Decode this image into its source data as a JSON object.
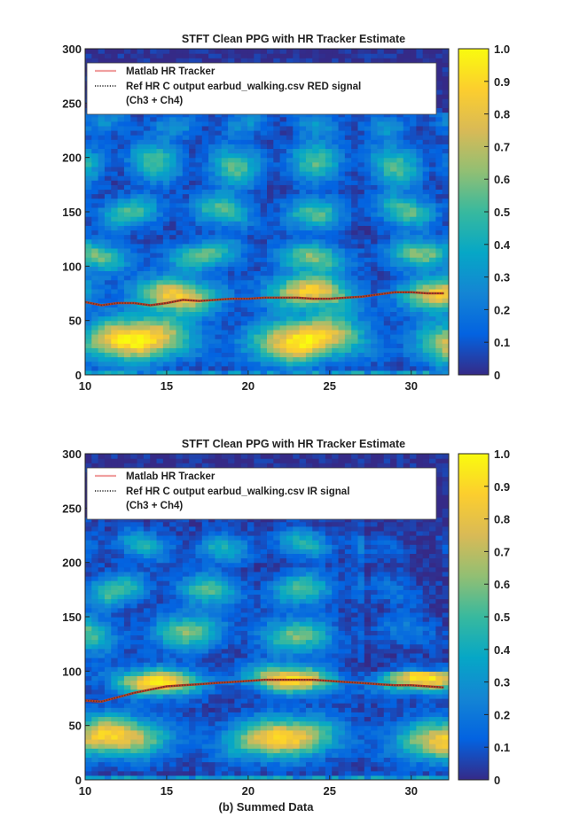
{
  "caption": "(b) Summed Data",
  "colormap": [
    "#352a87",
    "#0363e1",
    "#1485d4",
    "#06a7c6",
    "#38b99e",
    "#92bf73",
    "#d9ba56",
    "#fcce2e",
    "#f9fb0e"
  ],
  "chart_data": [
    {
      "type": "heatmap",
      "title": "STFT Clean PPG with HR Tracker Estimate",
      "xlabel": "",
      "ylabel": "",
      "xlim": [
        10,
        32.3
      ],
      "ylim": [
        0,
        300
      ],
      "x_ticks": [
        "10",
        "15",
        "20",
        "25",
        "30"
      ],
      "y_ticks": [
        "0",
        "50",
        "100",
        "150",
        "200",
        "250",
        "300"
      ],
      "colorbar": {
        "range": [
          0,
          1
        ],
        "ticks": [
          "0",
          "0.1",
          "0.2",
          "0.3",
          "0.4",
          "0.5",
          "0.6",
          "0.7",
          "0.8",
          "0.9",
          "1.0"
        ]
      },
      "legend": {
        "position": "top-left",
        "entries": [
          {
            "label": "Matlab HR Tracker",
            "color": "#f0a0a0",
            "style": "solid"
          },
          {
            "label": "Ref HR C output earbud_walking.csv RED signal",
            "label2": "(Ch3 + Ch4)",
            "color": "#555555",
            "style": "dotted"
          }
        ]
      },
      "series": [
        {
          "name": "Matlab HR Tracker",
          "x": [
            10,
            11,
            12,
            13,
            14,
            15,
            16,
            17,
            18,
            19,
            20,
            21,
            22,
            23,
            24,
            25,
            26,
            27,
            28,
            29,
            30,
            31,
            32
          ],
          "y": [
            67,
            64,
            66,
            66,
            64,
            66,
            69,
            68,
            69,
            70,
            70,
            71,
            71,
            71,
            70,
            70,
            71,
            72,
            74,
            76,
            76,
            75,
            75
          ]
        },
        {
          "name": "Ref HR C output earbud_walking.csv RED signal",
          "x": [
            10,
            11,
            12,
            13,
            14,
            15,
            16,
            17,
            18,
            19,
            20,
            21,
            22,
            23,
            24,
            25,
            26,
            27,
            28,
            29,
            30,
            31,
            32
          ],
          "y": [
            67,
            64,
            66,
            66,
            64,
            66,
            69,
            68,
            69,
            70,
            70,
            71,
            71,
            71,
            70,
            70,
            71,
            72,
            74,
            76,
            76,
            75,
            75
          ]
        }
      ],
      "intensity_bands": [
        {
          "y": 32,
          "w": 20,
          "v": 0.95
        },
        {
          "y": 75,
          "w": 15,
          "v": 0.8
        },
        {
          "y": 110,
          "w": 13,
          "v": 0.55
        },
        {
          "y": 150,
          "w": 14,
          "v": 0.5
        },
        {
          "y": 195,
          "w": 18,
          "v": 0.5
        },
        {
          "y": 232,
          "w": 12,
          "v": 0.25
        }
      ]
    },
    {
      "type": "heatmap",
      "title": "STFT Clean PPG with HR Tracker Estimate",
      "xlabel": "",
      "ylabel": "",
      "xlim": [
        10,
        32.3
      ],
      "ylim": [
        0,
        300
      ],
      "x_ticks": [
        "10",
        "15",
        "20",
        "25",
        "30"
      ],
      "y_ticks": [
        "0",
        "50",
        "100",
        "150",
        "200",
        "250",
        "300"
      ],
      "colorbar": {
        "range": [
          0,
          1
        ],
        "ticks": [
          "0",
          "0.1",
          "0.2",
          "0.3",
          "0.4",
          "0.5",
          "0.6",
          "0.7",
          "0.8",
          "0.9",
          "1.0"
        ]
      },
      "legend": {
        "position": "top-left",
        "entries": [
          {
            "label": "Matlab HR Tracker",
            "color": "#f0a0a0",
            "style": "solid"
          },
          {
            "label": "Ref HR C output earbud_walking.csv IR signal",
            "label2": "(Ch3 + Ch4)",
            "color": "#555555",
            "style": "dotted"
          }
        ]
      },
      "series": [
        {
          "name": "Matlab HR Tracker",
          "x": [
            10,
            11,
            12,
            13,
            14,
            15,
            16,
            17,
            18,
            19,
            20,
            21,
            22,
            23,
            24,
            25,
            26,
            27,
            28,
            29,
            30,
            31,
            32
          ],
          "y": [
            73,
            72,
            76,
            80,
            83,
            86,
            87,
            88,
            89,
            90,
            91,
            92,
            92,
            92,
            92,
            91,
            90,
            89,
            88,
            87,
            87,
            86,
            85
          ]
        },
        {
          "name": "Ref HR C output earbud_walking.csv IR signal",
          "x": [
            10,
            11,
            12,
            13,
            14,
            15,
            16,
            17,
            18,
            19,
            20,
            21,
            22,
            23,
            24,
            25,
            26,
            27,
            28,
            29,
            30,
            31,
            32
          ],
          "y": [
            73,
            72,
            76,
            80,
            83,
            86,
            87,
            88,
            89,
            90,
            91,
            92,
            92,
            92,
            92,
            91,
            90,
            89,
            88,
            87,
            87,
            86,
            85
          ]
        }
      ],
      "intensity_bands": [
        {
          "y": 38,
          "w": 18,
          "v": 0.85
        },
        {
          "y": 92,
          "w": 12,
          "v": 0.9
        },
        {
          "y": 135,
          "w": 16,
          "v": 0.55
        },
        {
          "y": 175,
          "w": 14,
          "v": 0.5
        },
        {
          "y": 215,
          "w": 12,
          "v": 0.4
        }
      ]
    }
  ]
}
